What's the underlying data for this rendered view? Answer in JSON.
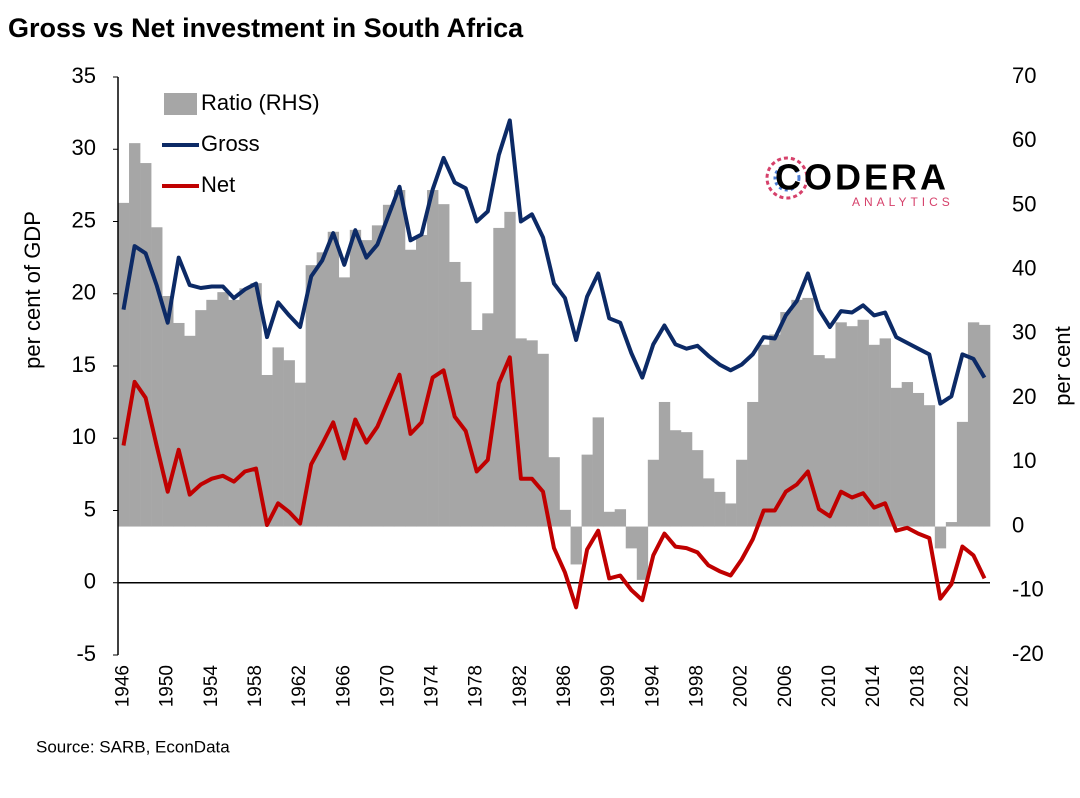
{
  "chart_data": {
    "type": "combo",
    "title": "Gross vs Net investment in South Africa",
    "source": "Source: SARB, EconData",
    "logo_name": "CODERA",
    "logo_tagline": "ANALYTICS",
    "ylabel": "per cent of GDP",
    "y2label": "per cent",
    "categories": [
      "1946",
      null,
      null,
      null,
      "1950",
      null,
      null,
      null,
      "1954",
      null,
      null,
      null,
      "1958",
      null,
      null,
      null,
      "1962",
      null,
      null,
      null,
      "1966",
      null,
      null,
      null,
      "1970",
      null,
      null,
      null,
      "1974",
      null,
      null,
      null,
      "1978",
      null,
      null,
      null,
      "1982",
      null,
      null,
      null,
      "1986",
      null,
      null,
      null,
      "1990",
      null,
      null,
      null,
      "1994",
      null,
      null,
      null,
      "1998",
      null,
      null,
      null,
      "2002",
      null,
      null,
      null,
      "2006",
      null,
      null,
      null,
      "2010",
      null,
      null,
      null,
      "2014",
      null,
      null,
      null,
      "2018",
      null,
      null,
      null,
      "2022",
      null,
      null
    ],
    "ylim": [
      -5,
      35
    ],
    "yticks": [
      -5,
      0,
      5,
      10,
      15,
      20,
      25,
      30,
      35
    ],
    "y2lim": [
      -20,
      70
    ],
    "y2ticks": [
      -20,
      -10,
      0,
      10,
      20,
      30,
      40,
      50,
      60,
      70
    ],
    "series": [
      {
        "name": "Ratio (RHS)",
        "type": "bar",
        "axis": "y2",
        "color": "#a6a6a6",
        "values": [
          50.4,
          59.7,
          56.6,
          46.6,
          35.9,
          31.7,
          29.7,
          33.7,
          35.3,
          36.5,
          35.3,
          37.1,
          37.9,
          23.6,
          27.9,
          25.9,
          22.4,
          40.7,
          42.7,
          45.9,
          38.8,
          46.2,
          44.6,
          46.9,
          50.1,
          52.4,
          43.1,
          45.4,
          52.4,
          50.2,
          41.2,
          38.1,
          30.6,
          33.2,
          46.5,
          49.0,
          29.3,
          29.0,
          26.9,
          10.8,
          2.6,
          -5.9,
          11.2,
          17.0,
          2.3,
          2.7,
          -3.4,
          -8.3,
          10.4,
          19.4,
          15.0,
          14.7,
          11.9,
          7.5,
          5.4,
          3.6,
          10.4,
          19.4,
          28.3,
          29.9,
          33.4,
          35.3,
          35.6,
          26.7,
          26.2,
          31.8,
          31.2,
          32.2,
          28.3,
          29.3,
          21.6,
          22.5,
          20.8,
          18.9,
          -3.4,
          0.7,
          16.3,
          31.8,
          31.4
        ]
      },
      {
        "name": "Gross",
        "type": "line",
        "color": "#0c2a66",
        "values": [
          18.9,
          23.3,
          22.8,
          20.6,
          18.0,
          22.5,
          20.6,
          20.4,
          20.5,
          20.5,
          19.7,
          20.3,
          20.7,
          17.0,
          19.4,
          18.5,
          17.7,
          21.2,
          22.3,
          24.2,
          22.0,
          24.4,
          22.5,
          23.4,
          25.4,
          27.4,
          23.7,
          24.1,
          27.2,
          29.4,
          27.7,
          27.3,
          25.0,
          25.7,
          29.6,
          32.0,
          25.0,
          25.5,
          23.9,
          20.7,
          19.7,
          16.8,
          19.8,
          21.4,
          18.3,
          18.0,
          15.9,
          14.2,
          16.5,
          17.8,
          16.5,
          16.2,
          16.4,
          15.7,
          15.1,
          14.7,
          15.1,
          15.8,
          17.0,
          16.9,
          18.5,
          19.5,
          21.4,
          18.9,
          17.7,
          18.8,
          18.7,
          19.2,
          18.5,
          18.7,
          17.0,
          16.6,
          16.2,
          15.8,
          12.4,
          12.9,
          15.8,
          15.5,
          14.2
        ]
      },
      {
        "name": "Net",
        "type": "line",
        "color": "#c00000",
        "values": [
          9.5,
          13.9,
          12.8,
          9.5,
          6.3,
          9.2,
          6.1,
          6.8,
          7.2,
          7.4,
          7.0,
          7.7,
          7.9,
          4.0,
          5.5,
          4.9,
          4.1,
          8.2,
          9.6,
          11.1,
          8.6,
          11.3,
          9.7,
          10.8,
          12.6,
          14.4,
          10.3,
          11.1,
          14.2,
          14.7,
          11.5,
          10.5,
          7.7,
          8.5,
          13.8,
          15.6,
          7.2,
          7.2,
          6.3,
          2.4,
          0.7,
          -1.7,
          2.3,
          3.6,
          0.3,
          0.5,
          -0.5,
          -1.2,
          1.9,
          3.4,
          2.5,
          2.4,
          2.1,
          1.2,
          0.8,
          0.5,
          1.6,
          3.0,
          5.0,
          5.0,
          6.3,
          6.8,
          7.7,
          5.1,
          4.6,
          6.3,
          5.9,
          6.2,
          5.2,
          5.5,
          3.6,
          3.8,
          3.4,
          3.1,
          -1.1,
          -0.1,
          2.5,
          1.9,
          0.3
        ]
      }
    ]
  }
}
